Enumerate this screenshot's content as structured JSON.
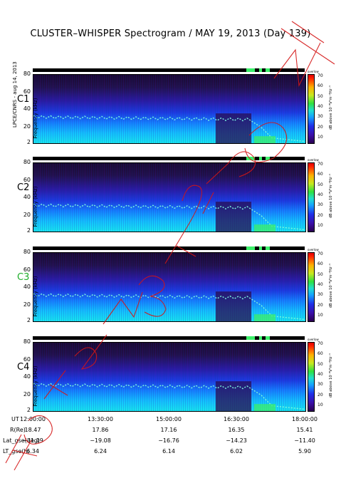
{
  "title": "CLUSTER–WHISPER Spectrogram / MAY 19, 2013 (Day 139)",
  "credit": "LPCE/CNRS - aug 14, 2013",
  "chart_data": {
    "type": "heatmap",
    "panels": [
      {
        "name": "C1",
        "label_color": "#000000"
      },
      {
        "name": "C2",
        "label_color": "#000000"
      },
      {
        "name": "C3",
        "label_color": "#1fae2a"
      },
      {
        "name": "C4",
        "label_color": "#000000"
      }
    ],
    "ylabel": "Frequency (kHz)",
    "ylim": [
      2,
      80
    ],
    "yticks": [
      "80",
      "60",
      "40",
      "20",
      "2"
    ],
    "colorbar": {
      "label": "dB above 10⁻⁸V²m⁻²Hz⁻¹",
      "header": "overlow",
      "ticks": [
        "70",
        "60",
        "50",
        "40",
        "30",
        "20",
        "10"
      ],
      "range": [
        5,
        72
      ]
    },
    "x": {
      "UT": [
        "12:00:00",
        "13:30:00",
        "15:00:00",
        "16:30:00",
        "18:00:00"
      ],
      "R(Re)": [
        "18.47",
        "17.86",
        "17.16",
        "16.35",
        "15.41"
      ],
      "Lat_gse(deg)": [
        "−21.19",
        "−19.08",
        "−16.76",
        "−14.23",
        "−11.40"
      ],
      "LT_gse(h)": [
        "6.34",
        "6.24",
        "6.14",
        "6.02",
        "5.90"
      ]
    },
    "xlabels": [
      "UT",
      "R(Re)",
      "Lat_gse(deg)",
      "LT_gse(h)"
    ]
  }
}
